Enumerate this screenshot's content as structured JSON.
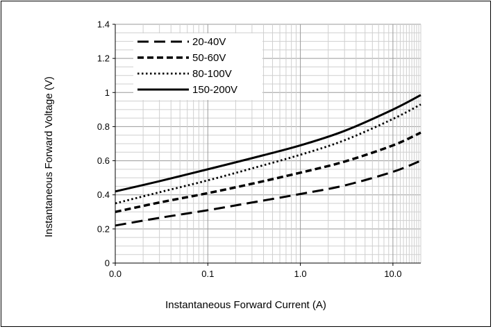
{
  "chart_data": {
    "type": "line",
    "xlabel": "Instantaneous Forward Current (A)",
    "ylabel": "Instantaneous Forward Voltage (V)",
    "xscale": "log",
    "xlim": [
      0.01,
      20
    ],
    "ylim": [
      0,
      1.4
    ],
    "x_ticks": [
      0.01,
      0.1,
      1,
      10
    ],
    "x_tick_labels": [
      "0.0",
      "0.1",
      "1.0",
      "10.0"
    ],
    "y_ticks": [
      0,
      0.2,
      0.4,
      0.6,
      0.8,
      1,
      1.2,
      1.4
    ],
    "y_tick_labels": [
      "0",
      "0.2",
      "0.4",
      "0.6",
      "0.8",
      "1",
      "1.2",
      "1.4"
    ],
    "grid": true,
    "legend_position": "top-left",
    "series": [
      {
        "name": "20-40V",
        "style": "long-dash",
        "x": [
          0.01,
          0.03,
          0.1,
          0.3,
          1,
          3,
          10,
          20
        ],
        "y": [
          0.22,
          0.265,
          0.31,
          0.355,
          0.405,
          0.455,
          0.535,
          0.6
        ]
      },
      {
        "name": "50-60V",
        "style": "short-dash",
        "x": [
          0.01,
          0.03,
          0.1,
          0.3,
          1,
          3,
          10,
          20
        ],
        "y": [
          0.3,
          0.355,
          0.41,
          0.465,
          0.53,
          0.595,
          0.69,
          0.765
        ]
      },
      {
        "name": "80-100V",
        "style": "dotted",
        "x": [
          0.01,
          0.03,
          0.1,
          0.3,
          1,
          3,
          10,
          20
        ],
        "y": [
          0.35,
          0.415,
          0.485,
          0.555,
          0.635,
          0.72,
          0.845,
          0.93
        ]
      },
      {
        "name": "150-200V",
        "style": "solid",
        "x": [
          0.01,
          0.03,
          0.1,
          0.3,
          1,
          3,
          10,
          20
        ],
        "y": [
          0.42,
          0.48,
          0.55,
          0.615,
          0.69,
          0.775,
          0.9,
          0.985
        ]
      }
    ]
  }
}
